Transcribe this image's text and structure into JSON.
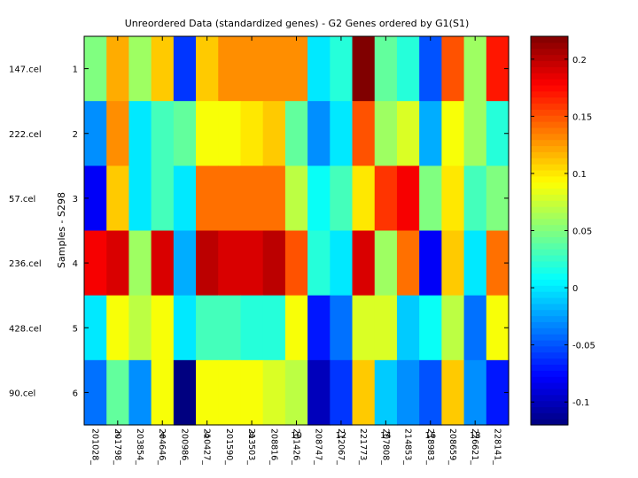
{
  "chart_data": {
    "type": "heatmap",
    "title": "Unreordered Data (standardized genes) - G2 Genes ordered by G1(S1)",
    "ylabel": "Samples - S298",
    "xlabel": "",
    "row_names": [
      "147.cel",
      "222.cel",
      "57.cel",
      "236.cel",
      "428.cel",
      "90.cel"
    ],
    "row_ticks": [
      "1",
      "2",
      "3",
      "4",
      "5",
      "6"
    ],
    "column_labels": [
      "201028_",
      "201798_",
      "203854_",
      "204646_",
      "200986_",
      "210427_",
      "201590_",
      "213503_",
      "208816_",
      "201426_",
      "208747_",
      "212067_",
      "221773_",
      "207808_",
      "214853_",
      "218983_",
      "208659_",
      "226621_",
      "228141_"
    ],
    "column_ticks": [
      "2",
      "4",
      "6",
      "8",
      "10",
      "12",
      "14",
      "16",
      "18"
    ],
    "color_range": [
      -0.12,
      0.22
    ],
    "colorbar_ticks": [
      "0.2",
      "0.15",
      "0.1",
      "0.05",
      "0",
      "-0.05",
      "-0.1"
    ],
    "colormap": "jet",
    "values": [
      [
        0.05,
        0.12,
        0.06,
        0.11,
        -0.06,
        0.11,
        0.13,
        0.13,
        0.13,
        0.13,
        0.0,
        0.02,
        0.22,
        0.04,
        0.02,
        -0.05,
        0.15,
        0.06,
        0.17
      ],
      [
        -0.03,
        0.13,
        0.0,
        0.03,
        0.04,
        0.09,
        0.09,
        0.1,
        0.11,
        0.04,
        -0.03,
        0.0,
        0.15,
        0.06,
        0.08,
        -0.02,
        0.09,
        0.06,
        0.02
      ],
      [
        -0.08,
        0.11,
        0.0,
        0.03,
        0.0,
        0.14,
        0.14,
        0.14,
        0.14,
        0.07,
        0.01,
        0.03,
        0.1,
        0.16,
        0.18,
        0.05,
        0.1,
        0.03,
        0.05
      ],
      [
        0.18,
        0.19,
        0.06,
        0.19,
        -0.02,
        0.2,
        0.19,
        0.19,
        0.2,
        0.15,
        0.02,
        0.0,
        0.19,
        0.06,
        0.14,
        -0.08,
        0.11,
        0.0,
        0.14
      ],
      [
        0.0,
        0.09,
        0.07,
        0.09,
        0.0,
        0.03,
        0.03,
        0.02,
        0.02,
        0.09,
        -0.07,
        -0.04,
        0.08,
        0.08,
        -0.01,
        0.01,
        0.07,
        -0.04,
        0.09
      ],
      [
        -0.04,
        0.04,
        -0.03,
        0.09,
        -0.12,
        0.09,
        0.09,
        0.09,
        0.08,
        0.07,
        -0.1,
        -0.06,
        0.11,
        -0.01,
        -0.03,
        -0.05,
        0.11,
        -0.03,
        -0.07
      ]
    ]
  }
}
